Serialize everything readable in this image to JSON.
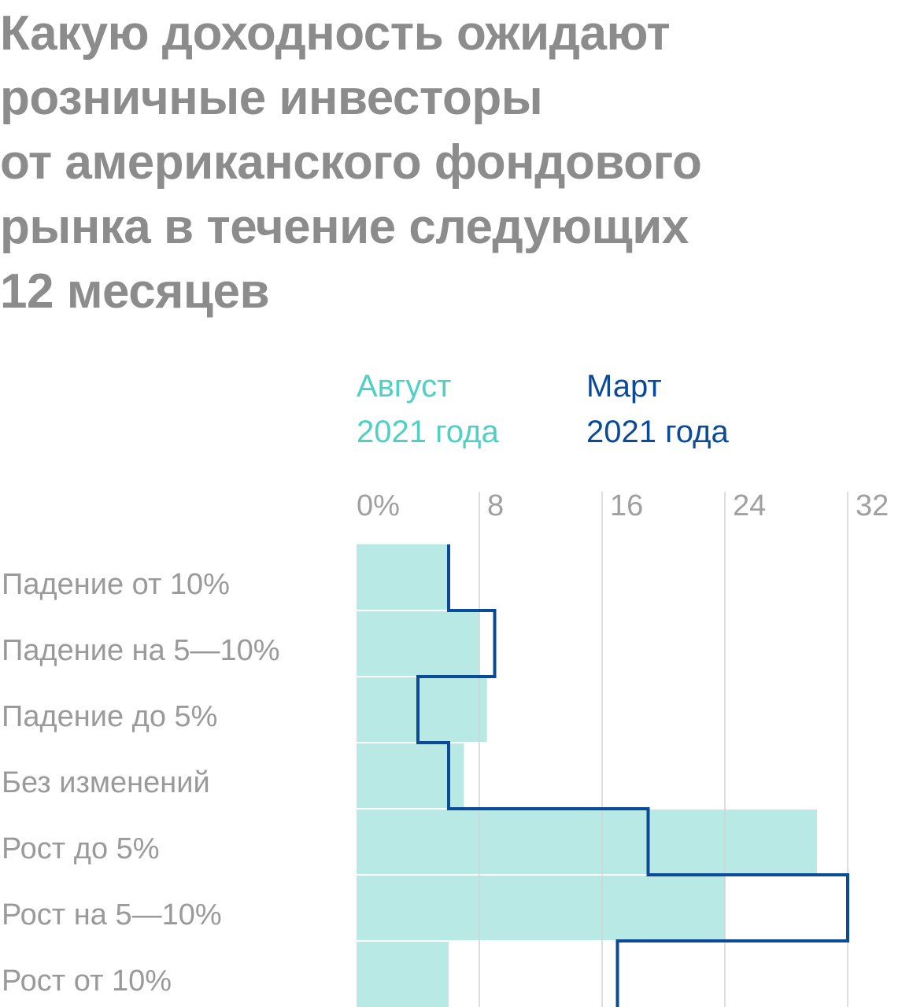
{
  "title_lines": [
    "Какую доходность ожидают",
    "розничные инвесторы",
    "от американского фондового",
    "рынка в течение следующих",
    "12 месяцев"
  ],
  "colors": {
    "title": "#8c8c8c",
    "august": "#4fd0c2",
    "august_fill": "#b8e9e5",
    "march": "#0b4a96",
    "grid": "#d4d4d4",
    "tick_label": "#a0a0a0",
    "category_label": "#9a9a9a"
  },
  "legend": {
    "august": {
      "line1": "Август",
      "line2": "2021 года"
    },
    "march": {
      "line1": "Март",
      "line2": "2021 года"
    }
  },
  "chart_data": {
    "type": "bar",
    "orientation": "horizontal",
    "categories": [
      "Падение от 10%",
      "Падение на 5—10%",
      "Падение до 5%",
      "Без изменений",
      "Рост до 5%",
      "Рост на 5—10%",
      "Рост от 10%"
    ],
    "series": [
      {
        "name": "Август 2021 года",
        "style": "filled-bars",
        "values": [
          6,
          8,
          8.5,
          7,
          30,
          24,
          6
        ]
      },
      {
        "name": "Март 2021 года",
        "style": "step-outline",
        "values": [
          6,
          9,
          4,
          6,
          19,
          32,
          17
        ]
      }
    ],
    "x_ticks": [
      "0%",
      "8",
      "16",
      "24",
      "32"
    ],
    "x_tick_values": [
      0,
      8,
      16,
      24,
      32
    ],
    "xlim": [
      0,
      32
    ],
    "grid": true,
    "legend_placement": "top"
  }
}
